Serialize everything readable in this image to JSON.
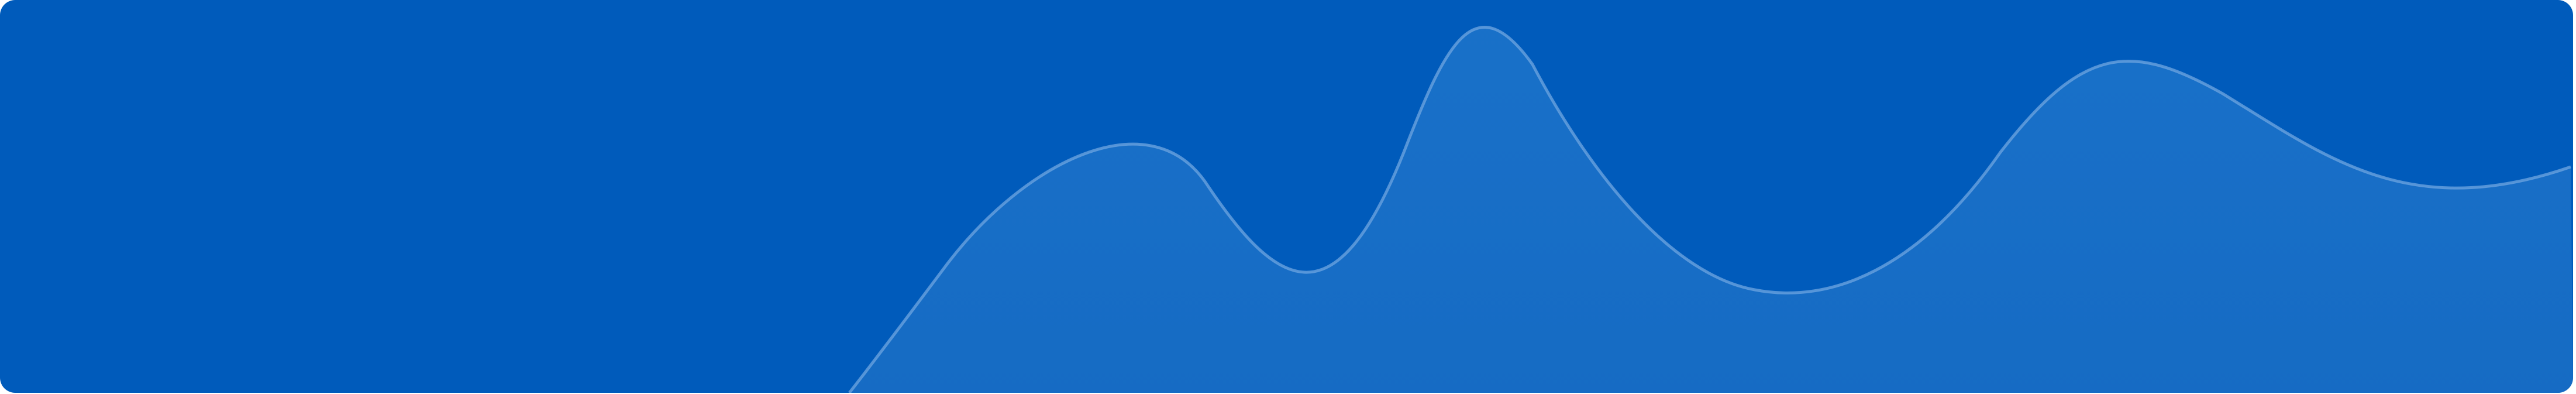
{
  "colors": {
    "background": "#005bbb",
    "wave_fill": "#1a70c6",
    "wave_line": "#6fa5e0"
  },
  "icons": [
    "decorative-wave"
  ]
}
